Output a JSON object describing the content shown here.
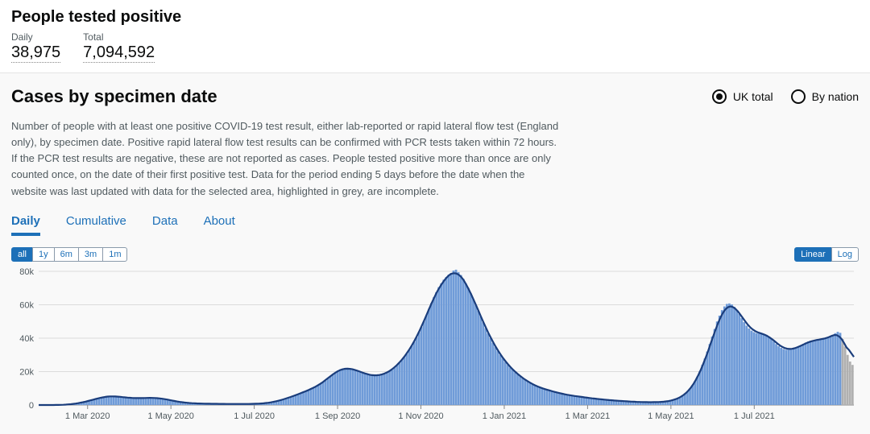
{
  "header": {
    "title": "People tested positive",
    "daily_label": "Daily",
    "daily_value": "38,975",
    "total_label": "Total",
    "total_value": "7,094,592"
  },
  "section": {
    "title": "Cases by specimen date",
    "radios": [
      {
        "label": "UK total",
        "selected": true
      },
      {
        "label": "By nation",
        "selected": false
      }
    ],
    "description": "Number of people with at least one positive COVID-19 test result, either lab-reported or rapid lateral flow test (England only), by specimen date. Positive rapid lateral flow test results can be confirmed with PCR tests taken within 72 hours. If the PCR test results are negative, these are not reported as cases. People tested positive more than once are only counted once, on the date of their first positive test. Data for the period ending 5 days before the date when the website was last updated with data for the selected area, highlighted in grey, are incomplete."
  },
  "tabs": [
    {
      "label": "Daily",
      "active": true
    },
    {
      "label": "Cumulative",
      "active": false
    },
    {
      "label": "Data",
      "active": false
    },
    {
      "label": "About",
      "active": false
    }
  ],
  "range_buttons": [
    {
      "label": "all",
      "active": true
    },
    {
      "label": "1y",
      "active": false
    },
    {
      "label": "6m",
      "active": false
    },
    {
      "label": "3m",
      "active": false
    },
    {
      "label": "1m",
      "active": false
    }
  ],
  "scale_buttons": [
    {
      "label": "Linear",
      "active": true
    },
    {
      "label": "Log",
      "active": false
    }
  ],
  "chart": {
    "type": "bar+line",
    "bar_color": "#6f9bd8",
    "line_color": "#1a3d7c",
    "incomplete_bar_color": "#b0b0b0",
    "grid_color": "#dcdcdc",
    "background_color": "#f9f9f9",
    "text_color": "#505a5f",
    "line_width": 2.2,
    "ylim": [
      0,
      80000
    ],
    "yticks": [
      0,
      20000,
      40000,
      60000,
      80000
    ],
    "ytick_labels": [
      "0",
      "20k",
      "40k",
      "60k",
      "80k"
    ],
    "xtick_labels": [
      "1 Mar 2020",
      "1 May 2020",
      "1 Jul 2020",
      "1 Sep 2020",
      "1 Nov 2020",
      "1 Jan 2021",
      "1 Mar 2021",
      "1 May 2021",
      "1 Jul 2021"
    ],
    "label_fontsize": 11,
    "incomplete_count": 5,
    "values": [
      0,
      0,
      0,
      0,
      0,
      0,
      0,
      0,
      0,
      100,
      150,
      200,
      300,
      400,
      600,
      800,
      1000,
      1300,
      1600,
      2000,
      2400,
      2800,
      3200,
      3600,
      4000,
      4400,
      4700,
      5000,
      5200,
      5300,
      5400,
      5300,
      5100,
      4900,
      4700,
      4500,
      4400,
      4300,
      4200,
      4100,
      4000,
      4000,
      4100,
      4200,
      4300,
      4400,
      4400,
      4300,
      4200,
      4000,
      3800,
      3600,
      3300,
      3000,
      2700,
      2400,
      2100,
      1800,
      1600,
      1400,
      1300,
      1200,
      1100,
      1000,
      950,
      900,
      850,
      800,
      780,
      760,
      740,
      720,
      700,
      680,
      660,
      650,
      640,
      630,
      620,
      610,
      600,
      600,
      600,
      610,
      620,
      630,
      650,
      680,
      720,
      780,
      850,
      950,
      1100,
      1300,
      1500,
      1800,
      2100,
      2500,
      2900,
      3300,
      3800,
      4300,
      4800,
      5300,
      5800,
      6400,
      7000,
      7600,
      8200,
      8800,
      9400,
      10000,
      10800,
      11600,
      12500,
      13500,
      14500,
      15800,
      17100,
      18500,
      19600,
      20600,
      21300,
      21800,
      22100,
      22200,
      22000,
      21700,
      21200,
      20600,
      20000,
      19400,
      18800,
      18300,
      17900,
      17600,
      17500,
      17500,
      17700,
      18000,
      18500,
      19200,
      20000,
      21000,
      22200,
      23600,
      25000,
      26800,
      28600,
      30500,
      32800,
      35200,
      37800,
      40500,
      43500,
      46700,
      50200,
      53800,
      57500,
      61000,
      64500,
      67500,
      70500,
      72800,
      75000,
      76500,
      78000,
      79000,
      80500,
      81000,
      79500,
      77800,
      75500,
      72800,
      70000,
      66800,
      63500,
      60000,
      56500,
      53000,
      49500,
      46000,
      42800,
      40000,
      37200,
      34600,
      32200,
      29900,
      27800,
      25800,
      24000,
      22400,
      21000,
      19600,
      18300,
      17100,
      16000,
      15000,
      14000,
      13100,
      12300,
      11600,
      11000,
      10400,
      9900,
      9400,
      9000,
      8600,
      8200,
      7800,
      7400,
      7000,
      6700,
      6400,
      6100,
      5800,
      5600,
      5400,
      5200,
      5000,
      4800,
      4600,
      4400,
      4200,
      4000,
      3800,
      3650,
      3500,
      3350,
      3200,
      3050,
      2900,
      2800,
      2700,
      2600,
      2500,
      2400,
      2300,
      2200,
      2100,
      2020,
      1950,
      1880,
      1820,
      1770,
      1730,
      1700,
      1680,
      1670,
      1680,
      1700,
      1750,
      1820,
      1920,
      2050,
      2250,
      2500,
      2850,
      3300,
      3900,
      4600,
      5500,
      6600,
      8000,
      9800,
      11800,
      14200,
      17000,
      20200,
      24000,
      27800,
      32000,
      36500,
      41000,
      45500,
      50000,
      53500,
      56800,
      59000,
      60500,
      60800,
      60200,
      58800,
      56800,
      54500,
      52000,
      49600,
      47500,
      45800,
      44500,
      43600,
      43000,
      42800,
      42800,
      42600,
      42000,
      41000,
      39600,
      38000,
      36500,
      35200,
      34200,
      33500,
      33100,
      33000,
      33200,
      33600,
      34200,
      35000,
      35800,
      36600,
      37400,
      38000,
      38500,
      38800,
      39000,
      39200,
      39400,
      39600,
      39852,
      40330,
      41000,
      42000,
      43000,
      43800,
      43200,
      39500,
      35000,
      30000,
      26000,
      24000
    ]
  }
}
